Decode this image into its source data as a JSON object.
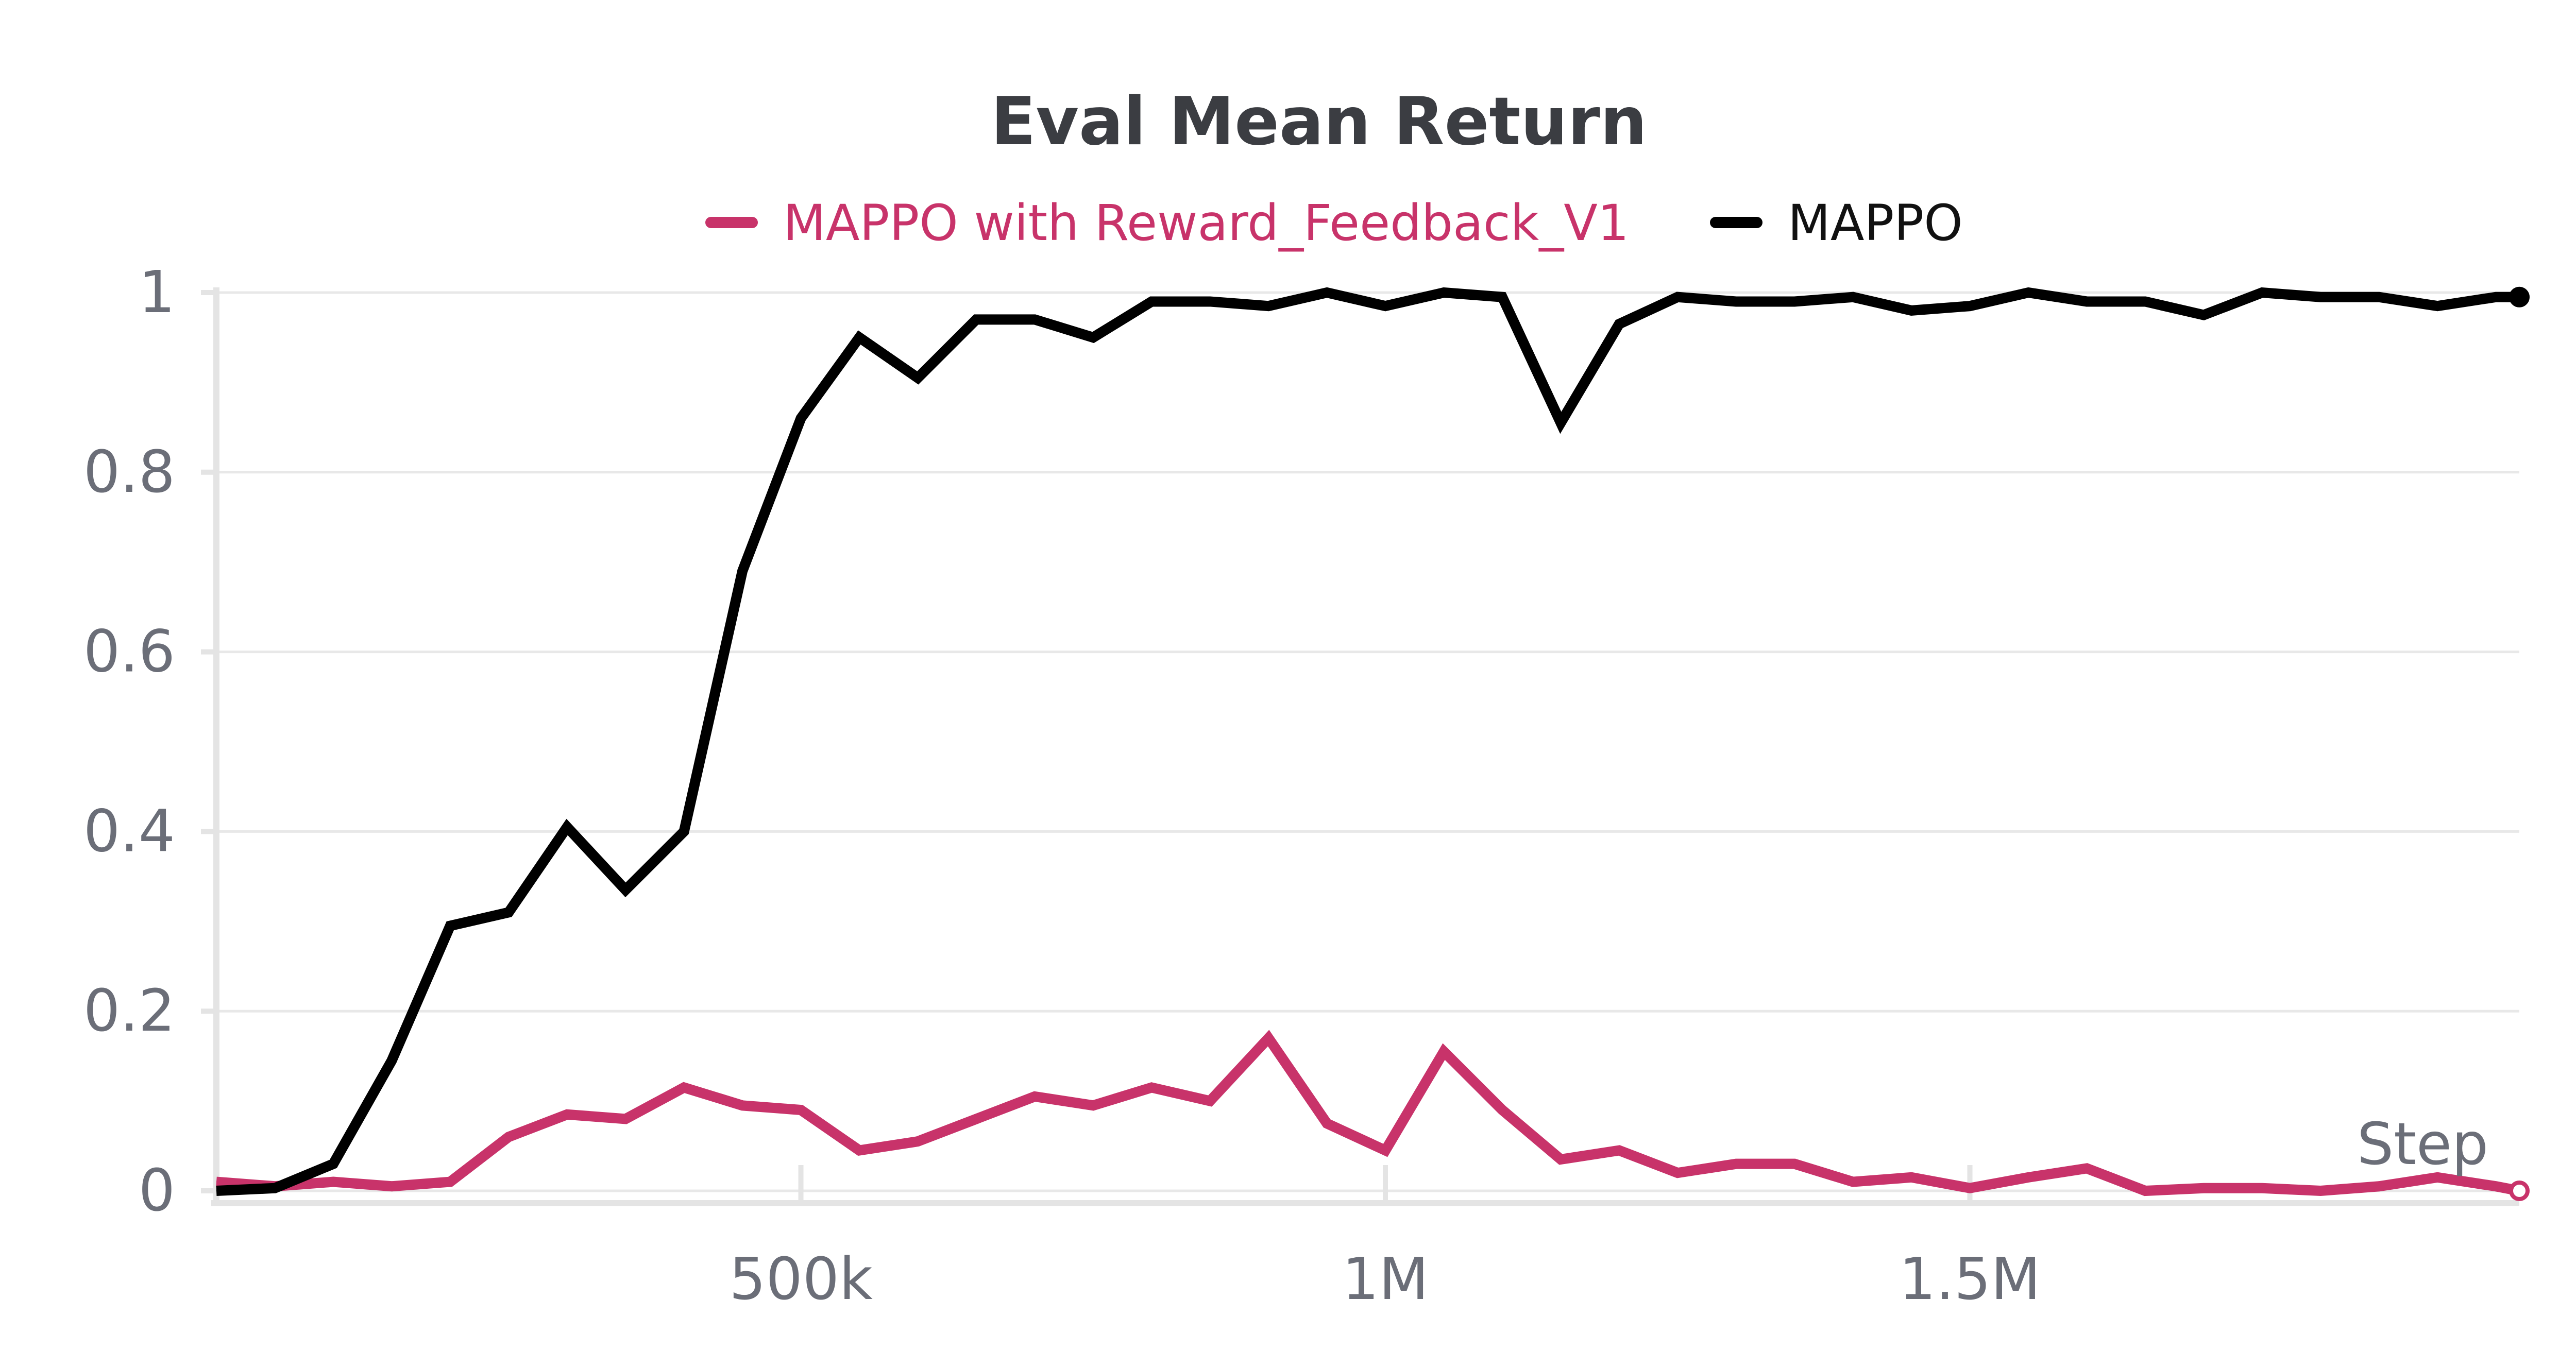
{
  "chart_data": {
    "type": "line",
    "title": "Eval Mean Return",
    "xlabel": "Step",
    "ylabel": "",
    "xlim": [
      0,
      1970000
    ],
    "ylim": [
      0,
      1
    ],
    "grid": true,
    "legend_placement": "top",
    "x_ticks": [
      {
        "value": 500000,
        "label": "500k"
      },
      {
        "value": 1000000,
        "label": "1M"
      },
      {
        "value": 1500000,
        "label": "1.5M"
      }
    ],
    "y_ticks": [
      {
        "value": 0,
        "label": "0"
      },
      {
        "value": 0.2,
        "label": "0.2"
      },
      {
        "value": 0.4,
        "label": "0.4"
      },
      {
        "value": 0.6,
        "label": "0.6"
      },
      {
        "value": 0.8,
        "label": "0.8"
      },
      {
        "value": 1,
        "label": "1"
      }
    ],
    "x": [
      0,
      50000,
      100000,
      150000,
      200000,
      250000,
      300000,
      350000,
      400000,
      450000,
      500000,
      550000,
      600000,
      650000,
      700000,
      750000,
      800000,
      850000,
      900000,
      950000,
      1000000,
      1050000,
      1100000,
      1150000,
      1200000,
      1250000,
      1300000,
      1350000,
      1400000,
      1450000,
      1500000,
      1550000,
      1600000,
      1650000,
      1700000,
      1750000,
      1800000,
      1850000,
      1900000,
      1950000,
      1970000
    ],
    "series": [
      {
        "name": "MAPPO with Reward_Feedback_V1",
        "color": "#c8336a",
        "values": [
          0.01,
          0.005,
          0.01,
          0.005,
          0.01,
          0.06,
          0.085,
          0.08,
          0.115,
          0.095,
          0.09,
          0.045,
          0.055,
          0.08,
          0.105,
          0.095,
          0.115,
          0.1,
          0.17,
          0.075,
          0.045,
          0.155,
          0.09,
          0.035,
          0.045,
          0.02,
          0.03,
          0.03,
          0.01,
          0.015,
          0.003,
          0.015,
          0.025,
          0.0,
          0.003,
          0.003,
          0.0,
          0.005,
          0.015,
          0.005,
          0.0
        ]
      },
      {
        "name": "MAPPO",
        "color": "#000000",
        "values": [
          0.0,
          0.003,
          0.03,
          0.145,
          0.295,
          0.31,
          0.405,
          0.335,
          0.4,
          0.69,
          0.86,
          0.95,
          0.905,
          0.97,
          0.97,
          0.95,
          0.99,
          0.99,
          0.985,
          1.0,
          0.985,
          1.0,
          0.995,
          0.855,
          0.965,
          0.995,
          0.99,
          0.99,
          0.995,
          0.98,
          0.985,
          1.0,
          0.99,
          0.99,
          0.975,
          1.0,
          0.995,
          0.995,
          0.985,
          0.995,
          0.995
        ]
      }
    ]
  }
}
